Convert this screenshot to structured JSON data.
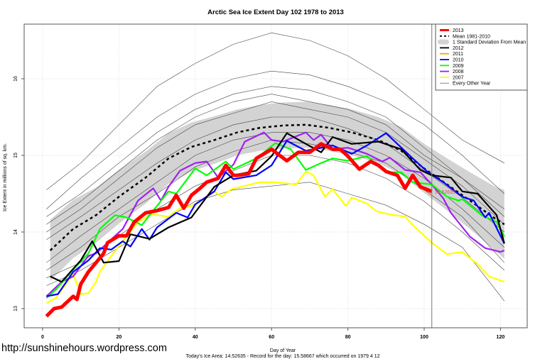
{
  "chart_data": {
    "type": "line",
    "title": "Arctic Sea Ice Extent Day 102 1978 to 2013",
    "xlabel": "Day of Year",
    "ylabel": "Ice Extent in millions of sq. km.",
    "subtitle": "Today's Ice Area: 14.52635  - Record for the day: 15.58667 which occurred on 1979 4 12",
    "xlim": [
      -5,
      127
    ],
    "ylim": [
      12.75,
      16.71
    ],
    "xticks": [
      "0",
      "20",
      "40",
      "60",
      "80",
      "100",
      "120"
    ],
    "yticks": [
      "13",
      "14",
      "15",
      "16"
    ],
    "grid": true,
    "legend_position": "top-right",
    "current_day_marker": 102,
    "end_label": "14.52635",
    "legend": [
      {
        "label": "2013",
        "color": "#ff0000",
        "style": "thick"
      },
      {
        "label": "Mean 1981-2010",
        "color": "#000000",
        "style": "dashed"
      },
      {
        "label": "1 Standard Deviation From Mean",
        "color": "#d3d3d3",
        "style": "band"
      },
      {
        "label": "2012",
        "color": "#000000",
        "style": "solid"
      },
      {
        "label": "2011",
        "color": "#ffa500",
        "style": "solid"
      },
      {
        "label": "2010",
        "color": "#0000ff",
        "style": "solid"
      },
      {
        "label": "2009",
        "color": "#00ff00",
        "style": "solid"
      },
      {
        "label": "2008",
        "color": "#a020f0",
        "style": "solid"
      },
      {
        "label": "2007",
        "color": "#ffff00",
        "style": "solid"
      },
      {
        "label": "Every Other Year",
        "color": "#555555",
        "style": "thin"
      }
    ],
    "mean": {
      "name": "Mean 1981-2010",
      "x": [
        2,
        8,
        14,
        20,
        27,
        33,
        39,
        45,
        51,
        57,
        63,
        69,
        75,
        81,
        88,
        94,
        100,
        106,
        112,
        119,
        121
      ],
      "y": [
        13.76,
        14.04,
        14.22,
        14.46,
        14.71,
        14.96,
        15.11,
        15.2,
        15.3,
        15.36,
        15.39,
        15.4,
        15.36,
        15.3,
        15.2,
        15.06,
        14.83,
        14.62,
        14.41,
        14.16,
        14.1
      ],
      "sd": [
        0.4,
        0.38,
        0.36,
        0.35,
        0.34,
        0.33,
        0.32,
        0.31,
        0.3,
        0.3,
        0.3,
        0.3,
        0.3,
        0.3,
        0.3,
        0.31,
        0.32,
        0.34,
        0.37,
        0.42,
        0.45
      ]
    },
    "every_other_year": {
      "x": [
        1,
        10,
        20,
        30,
        40,
        50,
        60,
        70,
        80,
        90,
        100,
        110,
        121
      ],
      "lines": [
        [
          14.55,
          14.9,
          15.4,
          15.9,
          16.2,
          16.45,
          16.6,
          16.5,
          16.3,
          16.0,
          15.6,
          15.2,
          14.9
        ],
        [
          14.3,
          14.7,
          15.1,
          15.5,
          15.8,
          16.0,
          16.1,
          16.05,
          15.9,
          15.7,
          15.4,
          15.0,
          14.5
        ],
        [
          14.2,
          14.5,
          14.9,
          15.3,
          15.6,
          15.8,
          15.9,
          15.85,
          15.7,
          15.5,
          15.1,
          14.7,
          14.3
        ],
        [
          14.1,
          14.4,
          14.8,
          15.2,
          15.5,
          15.7,
          15.8,
          15.7,
          15.6,
          15.4,
          15.0,
          14.7,
          14.2
        ],
        [
          14.0,
          14.3,
          14.7,
          15.1,
          15.4,
          15.55,
          15.7,
          15.6,
          15.5,
          15.3,
          14.95,
          14.6,
          14.1
        ],
        [
          13.9,
          14.2,
          14.55,
          14.9,
          15.2,
          15.4,
          15.5,
          15.5,
          15.35,
          15.15,
          14.8,
          14.45,
          14.0
        ],
        [
          13.6,
          13.95,
          14.3,
          14.65,
          15.0,
          15.2,
          15.3,
          15.3,
          15.2,
          15.0,
          14.7,
          14.3,
          13.8
        ],
        [
          13.5,
          13.8,
          14.2,
          14.5,
          14.85,
          15.05,
          15.2,
          15.15,
          15.05,
          14.9,
          14.55,
          14.2,
          13.6
        ],
        [
          13.4,
          13.6,
          13.95,
          14.3,
          14.6,
          14.8,
          15.0,
          15.0,
          14.9,
          14.7,
          14.4,
          14.0,
          13.5
        ],
        [
          13.3,
          13.5,
          13.8,
          14.1,
          14.4,
          14.55,
          14.6,
          14.65,
          14.5,
          14.35,
          14.1,
          13.8,
          13.1
        ]
      ]
    },
    "series": [
      {
        "name": "2007",
        "color": "#ffff00",
        "x": [
          1,
          3.5,
          8,
          10,
          12,
          14,
          15,
          18,
          22,
          25,
          28.5,
          33,
          36,
          39,
          41.5,
          45,
          47,
          49.5,
          52,
          57,
          61,
          66.5,
          69,
          71,
          74,
          76,
          79.5,
          81,
          85,
          87.5,
          91,
          95,
          97,
          102,
          106,
          110,
          114,
          117,
          121
        ],
        "y": [
          13.07,
          13.14,
          13.45,
          13.19,
          13.2,
          13.35,
          13.48,
          13.69,
          13.94,
          14.13,
          14.23,
          14.2,
          14.31,
          14.34,
          14.41,
          14.53,
          14.46,
          14.56,
          14.59,
          14.65,
          14.65,
          14.62,
          14.79,
          14.74,
          14.46,
          14.56,
          14.34,
          14.45,
          14.37,
          14.27,
          14.23,
          14.2,
          14.09,
          13.86,
          13.71,
          13.74,
          13.58,
          13.42,
          13.35
        ]
      },
      {
        "name": "2008",
        "color": "#a020f0",
        "x": [
          1,
          5,
          8,
          12,
          14,
          19,
          21,
          25,
          29,
          31,
          33,
          36,
          40,
          43,
          46,
          50,
          53,
          58,
          60,
          63,
          69,
          71,
          73,
          76,
          80,
          85,
          89,
          91,
          95,
          99,
          102,
          105,
          107,
          112,
          116,
          120,
          121
        ],
        "y": [
          13.16,
          13.35,
          13.42,
          13.69,
          13.72,
          13.95,
          14.04,
          14.41,
          14.57,
          14.41,
          14.59,
          14.8,
          14.9,
          14.92,
          14.71,
          14.88,
          15.18,
          15.3,
          15.2,
          15.18,
          15.3,
          15.2,
          15.27,
          15.08,
          15.1,
          15.02,
          14.92,
          14.97,
          14.81,
          14.78,
          14.62,
          14.44,
          14.25,
          13.94,
          13.79,
          13.74,
          13.76
        ]
      },
      {
        "name": "2009",
        "color": "#00ff00",
        "x": [
          1,
          3.5,
          8,
          12,
          15,
          19,
          22,
          26,
          29,
          33,
          35,
          40,
          43,
          48,
          50,
          56,
          61,
          65,
          69,
          73,
          76,
          80,
          85,
          90,
          94,
          97,
          102,
          106,
          109,
          110,
          115,
          119,
          121
        ],
        "y": [
          13.14,
          13.25,
          13.51,
          13.72,
          14.04,
          14.22,
          14.19,
          14.09,
          14.28,
          14.53,
          14.5,
          14.83,
          14.74,
          14.92,
          14.82,
          14.96,
          15.16,
          15.08,
          14.81,
          14.9,
          14.96,
          14.93,
          14.99,
          14.78,
          14.78,
          14.65,
          14.62,
          14.46,
          14.41,
          14.43,
          14.22,
          14.13,
          13.94
        ]
      },
      {
        "name": "2010",
        "color": "#0000ff",
        "x": [
          1,
          4,
          8,
          12,
          15,
          18,
          21,
          23,
          26,
          28,
          30,
          35,
          38,
          40,
          45,
          48,
          50,
          56,
          60,
          64,
          69,
          76,
          81,
          85,
          90,
          97,
          101,
          105,
          110,
          113,
          116,
          117,
          121
        ],
        "y": [
          13.16,
          13.19,
          13.48,
          13.63,
          13.79,
          13.77,
          13.88,
          13.81,
          14.04,
          13.9,
          14.06,
          14.25,
          14.19,
          14.36,
          14.53,
          14.78,
          14.69,
          14.74,
          14.87,
          15.19,
          15.06,
          15.13,
          15.02,
          15.13,
          15.29,
          14.96,
          14.78,
          14.65,
          14.46,
          14.41,
          14.19,
          14.25,
          13.85
        ]
      },
      {
        "name": "2012",
        "color": "#000000",
        "x": [
          2,
          5,
          10,
          13,
          16,
          20,
          23,
          28,
          33,
          39,
          45,
          50,
          56,
          60,
          64,
          69,
          73,
          76,
          81,
          88,
          94,
          99,
          102,
          107,
          110,
          114,
          119,
          121
        ],
        "y": [
          13.42,
          13.35,
          13.63,
          13.88,
          13.6,
          13.62,
          13.97,
          13.91,
          14.06,
          14.19,
          14.59,
          14.74,
          14.8,
          14.99,
          15.29,
          15.15,
          15.04,
          15.24,
          15.15,
          15.18,
          15.08,
          14.81,
          14.74,
          14.71,
          14.53,
          14.5,
          14.22,
          13.85
        ]
      },
      {
        "name": "2013",
        "color": "#ff0000",
        "x": [
          1,
          3,
          5,
          8,
          9,
          10,
          12,
          14,
          16,
          17,
          20,
          22,
          24,
          27,
          30,
          33,
          35,
          37,
          39,
          41,
          43,
          46,
          48,
          50,
          51,
          54,
          56,
          60,
          64,
          67,
          70,
          73,
          76,
          78,
          80,
          83,
          86,
          88,
          90,
          93,
          95,
          97,
          99,
          102
        ],
        "y": [
          12.9,
          13.0,
          13.02,
          13.16,
          13.12,
          13.32,
          13.48,
          13.6,
          13.72,
          13.86,
          13.95,
          13.95,
          14.13,
          14.25,
          14.28,
          14.32,
          14.48,
          14.31,
          14.48,
          14.56,
          14.65,
          14.7,
          14.87,
          14.74,
          14.74,
          14.76,
          14.96,
          15.08,
          14.93,
          15.04,
          15.04,
          15.15,
          15.08,
          15.08,
          14.99,
          14.82,
          14.92,
          14.87,
          14.79,
          14.74,
          14.57,
          14.74,
          14.59,
          14.53
        ]
      }
    ]
  },
  "footer": {
    "url": "http://sunshinehours.wordpress.com"
  }
}
